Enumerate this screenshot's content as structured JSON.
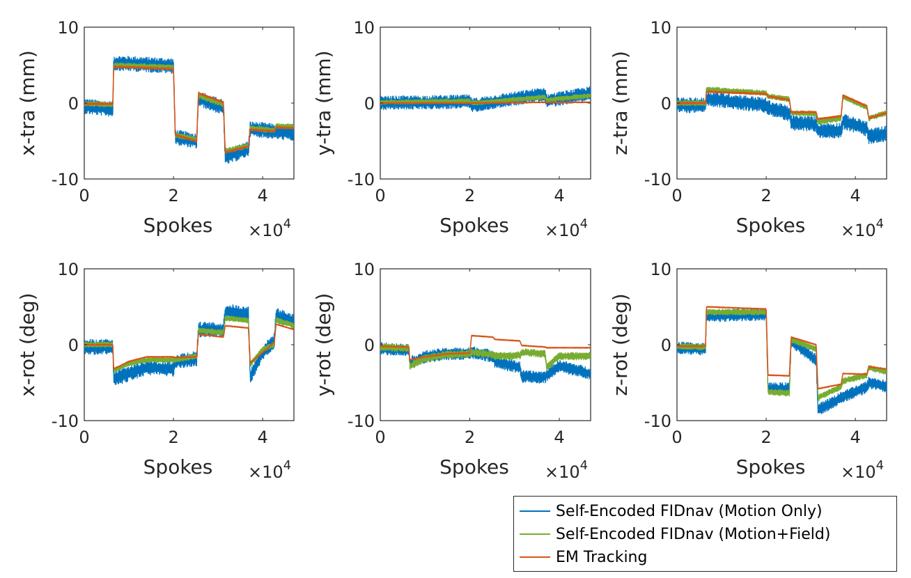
{
  "figure": {
    "x_multiplier": {
      "prefix": "×10",
      "exponent": "4"
    }
  },
  "legend": {
    "placement": "bottom-right",
    "entries": [
      {
        "label": "Self-Encoded FIDnav (Motion Only)",
        "color": "#0072BD"
      },
      {
        "label": "Self-Encoded FIDnav (Motion+Field)",
        "color": "#77AC30"
      },
      {
        "label": "EM Tracking",
        "color": "#D95319"
      }
    ]
  },
  "chart_data": [
    {
      "type": "line",
      "xlabel": "Spokes",
      "ylabel": "x-tra (mm)",
      "xlim": [
        0,
        4.7
      ],
      "ylim": [
        -10,
        10
      ],
      "xticks": [
        0,
        2,
        4
      ],
      "yticks": [
        10,
        0,
        -10
      ],
      "series": [
        {
          "name": "Self-Encoded FIDnav (Motion Only)",
          "noise": 1.0,
          "x": [
            0,
            0.64,
            0.66,
            2.0,
            2.04,
            2.52,
            2.56,
            3.12,
            3.16,
            3.68,
            3.72,
            4.7
          ],
          "y": [
            -0.4,
            -0.8,
            5.3,
            4.9,
            -4.5,
            -5.0,
            0.6,
            -0.6,
            -7.2,
            -6.0,
            -3.4,
            -4.0
          ]
        },
        {
          "name": "Self-Encoded FIDnav (Motion+Field)",
          "noise": 0.35,
          "x": [
            0,
            0.64,
            0.66,
            2.0,
            2.04,
            2.52,
            2.56,
            3.12,
            3.16,
            3.68,
            3.72,
            4.26,
            4.3,
            4.7
          ],
          "y": [
            -0.1,
            -0.2,
            5.0,
            4.7,
            -4.2,
            -4.8,
            1.0,
            -0.2,
            -6.3,
            -5.6,
            -3.3,
            -3.6,
            -3.0,
            -3.1
          ]
        },
        {
          "name": "EM Tracking",
          "noise": 0.1,
          "x": [
            0,
            0.64,
            0.66,
            2.0,
            2.04,
            2.52,
            2.56,
            3.12,
            3.16,
            3.68,
            3.72,
            4.26,
            4.3,
            4.7
          ],
          "y": [
            -0.1,
            -0.1,
            4.8,
            4.5,
            -4.2,
            -5.0,
            1.3,
            0.1,
            -6.5,
            -5.7,
            -3.5,
            -3.7,
            -3.2,
            -3.3
          ]
        }
      ]
    },
    {
      "type": "line",
      "xlabel": "Spokes",
      "ylabel": "y-tra (mm)",
      "xlim": [
        0,
        4.7
      ],
      "ylim": [
        -10,
        10
      ],
      "xticks": [
        0,
        2,
        4
      ],
      "yticks": [
        10,
        0,
        -10
      ],
      "series": [
        {
          "name": "Self-Encoded FIDnav (Motion Only)",
          "noise": 0.9,
          "x": [
            0,
            2.0,
            2.04,
            3.68,
            3.72,
            4.7
          ],
          "y": [
            0.0,
            0.2,
            -0.3,
            1.2,
            0.3,
            1.3
          ]
        },
        {
          "name": "Self-Encoded FIDnav (Motion+Field)",
          "noise": 0.3,
          "x": [
            0,
            2.0,
            2.04,
            3.68,
            3.72,
            4.7
          ],
          "y": [
            0.1,
            0.3,
            0.0,
            0.8,
            0.4,
            1.0
          ]
        },
        {
          "name": "EM Tracking",
          "noise": 0.05,
          "x": [
            0,
            2.0,
            3.7,
            4.7
          ],
          "y": [
            0.0,
            0.0,
            0.1,
            0.1
          ]
        }
      ]
    },
    {
      "type": "line",
      "xlabel": "Spokes",
      "ylabel": "z-tra (mm)",
      "xlim": [
        0,
        4.7
      ],
      "ylim": [
        -10,
        10
      ],
      "xticks": [
        0,
        2,
        4
      ],
      "yticks": [
        10,
        0,
        -10
      ],
      "series": [
        {
          "name": "Self-Encoded FIDnav (Motion Only)",
          "noise": 1.0,
          "x": [
            0,
            0.64,
            0.66,
            2.0,
            2.04,
            2.52,
            2.56,
            3.12,
            3.16,
            3.68,
            3.72,
            4.26,
            4.3,
            4.7
          ],
          "y": [
            -0.3,
            -0.3,
            0.6,
            -0.3,
            -0.6,
            -1.4,
            -2.6,
            -2.8,
            -3.6,
            -3.6,
            -2.4,
            -3.4,
            -4.4,
            -4.0
          ]
        },
        {
          "name": "Self-Encoded FIDnav (Motion+Field)",
          "noise": 0.35,
          "x": [
            0,
            0.64,
            0.66,
            2.0,
            2.04,
            2.52,
            2.56,
            3.12,
            3.16,
            3.68,
            3.72,
            4.26,
            4.3,
            4.7
          ],
          "y": [
            0.0,
            0.0,
            1.8,
            1.3,
            0.9,
            0.5,
            -1.3,
            -1.4,
            -2.5,
            -2.0,
            0.8,
            -0.6,
            -2.0,
            -1.3
          ]
        },
        {
          "name": "EM Tracking",
          "noise": 0.1,
          "x": [
            0,
            0.64,
            0.66,
            2.0,
            2.04,
            2.52,
            2.56,
            3.12,
            3.16,
            3.68,
            3.72,
            4.26,
            4.3,
            4.7
          ],
          "y": [
            0.0,
            0.0,
            1.5,
            1.2,
            0.9,
            0.4,
            -1.2,
            -1.2,
            -2.1,
            -1.7,
            1.0,
            -0.4,
            -2.0,
            -1.3
          ]
        }
      ]
    },
    {
      "type": "line",
      "xlabel": "Spokes",
      "ylabel": "x-rot (deg)",
      "xlim": [
        0,
        4.7
      ],
      "ylim": [
        -10,
        10
      ],
      "xticks": [
        0,
        2,
        4
      ],
      "yticks": [
        10,
        0,
        -10
      ],
      "series": [
        {
          "name": "Self-Encoded FIDnav (Motion Only)",
          "noise": 1.0,
          "x": [
            0,
            0.64,
            0.66,
            1.0,
            1.4,
            2.0,
            2.04,
            2.52,
            2.56,
            3.12,
            3.16,
            3.68,
            3.72,
            4.0,
            4.26,
            4.3,
            4.7
          ],
          "y": [
            -0.3,
            -0.3,
            -4.5,
            -3.8,
            -3.0,
            -3.2,
            -2.2,
            -1.8,
            2.0,
            1.9,
            4.4,
            4.0,
            -4.3,
            -1.0,
            0.5,
            3.9,
            3.0
          ]
        },
        {
          "name": "Self-Encoded FIDnav (Motion+Field)",
          "noise": 0.35,
          "x": [
            0,
            0.64,
            0.66,
            1.0,
            1.4,
            2.0,
            2.04,
            2.52,
            2.56,
            3.12,
            3.16,
            3.68,
            3.72,
            4.0,
            4.26,
            4.3,
            4.7
          ],
          "y": [
            0.0,
            0.0,
            -3.4,
            -2.5,
            -2.0,
            -2.0,
            -2.0,
            -1.5,
            1.9,
            1.6,
            3.5,
            3.2,
            -2.6,
            -0.6,
            0.0,
            3.3,
            2.5
          ]
        },
        {
          "name": "EM Tracking",
          "noise": 0.05,
          "x": [
            0,
            0.64,
            0.66,
            1.0,
            1.4,
            2.0,
            2.04,
            2.52,
            2.56,
            3.12,
            3.16,
            3.68,
            3.72,
            4.0,
            4.26,
            4.3,
            4.7
          ],
          "y": [
            0.0,
            0.0,
            -3.2,
            -2.2,
            -1.6,
            -1.6,
            -1.7,
            -1.6,
            1.4,
            1.0,
            2.5,
            2.2,
            -2.4,
            -1.0,
            0.3,
            2.7,
            2.0
          ]
        }
      ]
    },
    {
      "type": "line",
      "xlabel": "Spokes",
      "ylabel": "y-rot (deg)",
      "xlim": [
        0,
        4.7
      ],
      "ylim": [
        -10,
        10
      ],
      "xticks": [
        0,
        2,
        4
      ],
      "yticks": [
        10,
        0,
        -10
      ],
      "series": [
        {
          "name": "Self-Encoded FIDnav (Motion Only)",
          "noise": 0.8,
          "x": [
            0,
            0.64,
            0.66,
            1.0,
            1.5,
            2.0,
            2.04,
            2.52,
            2.56,
            3.12,
            3.16,
            3.68,
            3.72,
            4.0,
            4.7
          ],
          "y": [
            -0.5,
            -0.7,
            -2.4,
            -1.6,
            -1.2,
            -1.2,
            -1.0,
            -1.5,
            -2.2,
            -3.0,
            -4.2,
            -4.3,
            -4.0,
            -2.8,
            -3.8
          ]
        },
        {
          "name": "Self-Encoded FIDnav (Motion+Field)",
          "noise": 0.5,
          "x": [
            0,
            0.64,
            0.66,
            1.0,
            1.5,
            2.0,
            2.04,
            2.52,
            2.56,
            3.12,
            3.16,
            3.68,
            3.72,
            4.0,
            4.7
          ],
          "y": [
            -0.3,
            -0.5,
            -2.8,
            -1.8,
            -1.3,
            -1.2,
            -1.0,
            -1.3,
            -1.5,
            -1.4,
            -1.0,
            -1.2,
            -3.0,
            -1.5,
            -1.5
          ]
        },
        {
          "name": "EM Tracking",
          "noise": 0.05,
          "x": [
            0,
            0.64,
            0.66,
            1.0,
            1.5,
            2.0,
            2.04,
            2.52,
            2.56,
            3.12,
            3.16,
            3.68,
            3.72,
            4.7
          ],
          "y": [
            -0.2,
            -0.3,
            -2.0,
            -1.6,
            -1.2,
            -1.1,
            1.2,
            1.0,
            0.7,
            0.5,
            -0.1,
            -0.3,
            -0.4,
            -0.4
          ]
        }
      ]
    },
    {
      "type": "line",
      "xlabel": "Spokes",
      "ylabel": "z-rot (deg)",
      "xlim": [
        0,
        4.7
      ],
      "ylim": [
        -10,
        10
      ],
      "xticks": [
        0,
        2,
        4
      ],
      "yticks": [
        10,
        0,
        -10
      ],
      "series": [
        {
          "name": "Self-Encoded FIDnav (Motion Only)",
          "noise": 0.8,
          "x": [
            0,
            0.64,
            0.66,
            2.0,
            2.04,
            2.52,
            2.56,
            3.12,
            3.16,
            3.68,
            3.72,
            4.26,
            4.3,
            4.7
          ],
          "y": [
            -0.4,
            -0.6,
            3.8,
            4.0,
            -5.8,
            -5.8,
            0.5,
            -2.0,
            -8.6,
            -7.0,
            -6.8,
            -5.6,
            -5.0,
            -5.5
          ]
        },
        {
          "name": "Self-Encoded FIDnav (Motion+Field)",
          "noise": 0.4,
          "x": [
            0,
            0.64,
            0.66,
            2.0,
            2.04,
            2.52,
            2.56,
            3.12,
            3.16,
            3.68,
            3.72,
            4.26,
            4.3,
            4.7
          ],
          "y": [
            -0.2,
            -0.3,
            4.3,
            4.3,
            -6.2,
            -6.4,
            0.7,
            -0.6,
            -7.0,
            -5.5,
            -4.8,
            -4.0,
            -3.0,
            -3.6
          ]
        },
        {
          "name": "EM Tracking",
          "noise": 0.05,
          "x": [
            0,
            0.64,
            0.66,
            2.0,
            2.04,
            2.52,
            2.56,
            3.12,
            3.16,
            3.68,
            3.72,
            4.26,
            4.3,
            4.7
          ],
          "y": [
            -0.2,
            -0.2,
            5.0,
            4.7,
            -4.0,
            -4.1,
            1.0,
            0.0,
            -5.8,
            -5.2,
            -3.8,
            -3.9,
            -2.9,
            -3.2
          ]
        }
      ]
    }
  ]
}
